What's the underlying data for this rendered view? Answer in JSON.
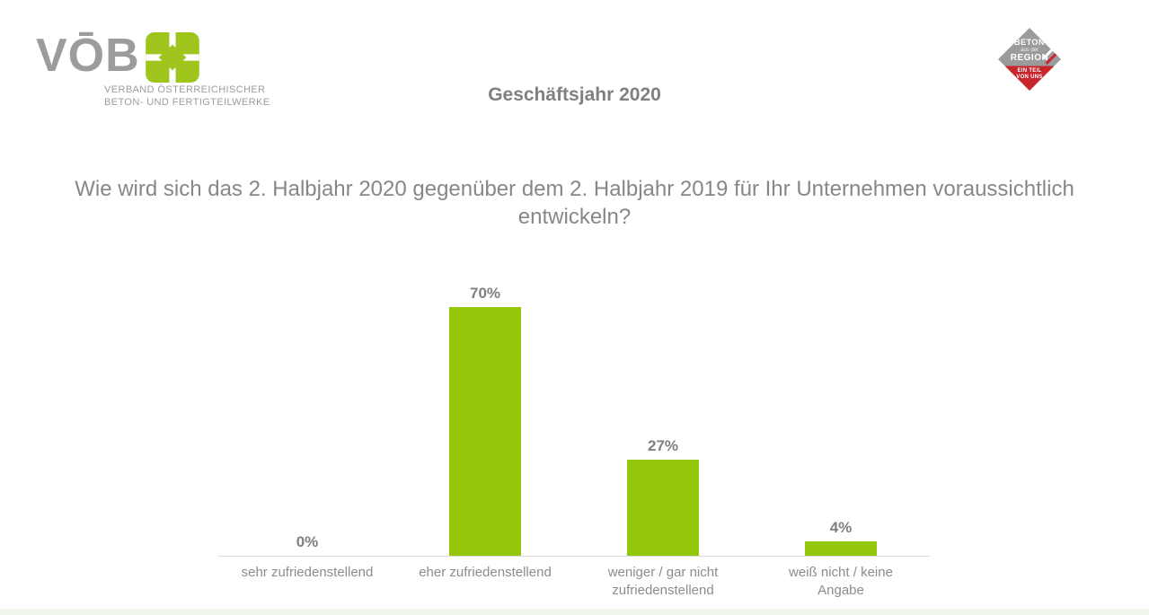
{
  "header": {
    "title": "Geschäftsjahr 2020"
  },
  "logo": {
    "wordmark": "VŌB",
    "subtitle_line1": "VERBAND ÖSTERREICHISCHER",
    "subtitle_line2": "BETON- UND FERTIGTEILWERKE",
    "green": "#9FC41C",
    "gray": "#9C9C9C"
  },
  "badge": {
    "line1": "BETON",
    "line2": "aus der",
    "line3": "REGION",
    "line4": "EIN TEIL",
    "line5": "VON UNS",
    "gray": "#9B9B9B",
    "red": "#C9252C"
  },
  "chart_data": {
    "type": "bar",
    "title": "Geschäftsjahr 2020",
    "question": "Wie wird sich das 2. Halbjahr 2020 gegenüber dem 2. Halbjahr 2019 für Ihr Unternehmen voraussichtlich entwickeln?",
    "categories": [
      "sehr zufriedenstellend",
      "eher zufriedenstellend",
      "weniger / gar nicht zufriedenstellend",
      "weiß nicht / keine Angabe"
    ],
    "values": [
      0,
      70,
      27,
      4
    ],
    "value_labels": [
      "0%",
      "70%",
      "27%",
      "4%"
    ],
    "unit": "%",
    "bar_color": "#95C80A",
    "ylim": [
      0,
      75
    ],
    "grid": false,
    "legend": false,
    "axis_line_color": "#D9D9D9",
    "data_labels": "above-bars",
    "orientation": "vertical"
  }
}
